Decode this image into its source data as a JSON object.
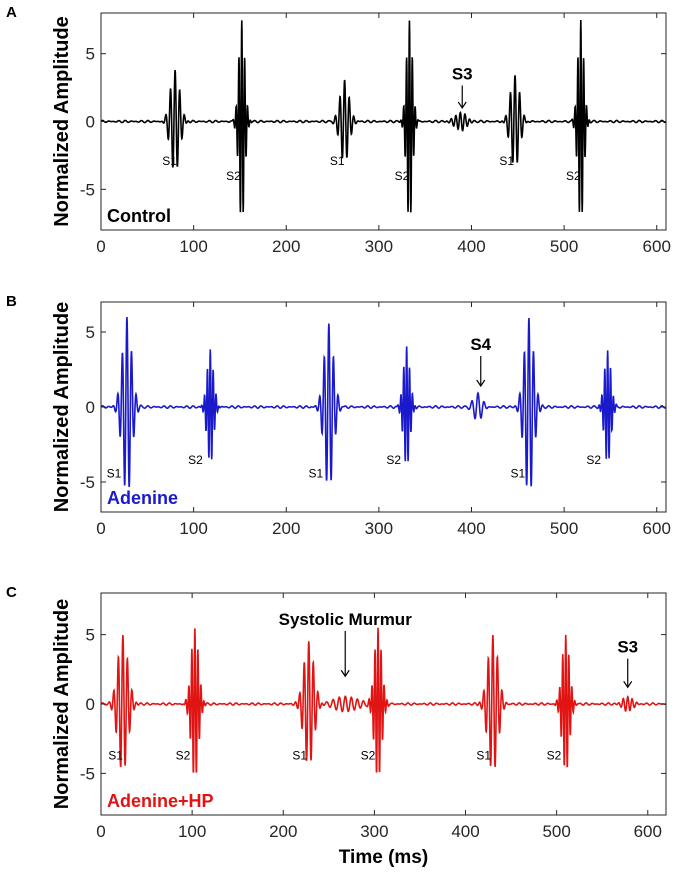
{
  "chart_data": [
    {
      "type": "line",
      "panel_label": "A",
      "ylabel": "Normalized Amplitude",
      "xlabel": "",
      "xlim": [
        0,
        610
      ],
      "ylim": [
        -8,
        8
      ],
      "xticks": [
        0,
        100,
        200,
        300,
        400,
        500,
        600
      ],
      "yticks": [
        -5,
        0,
        5
      ],
      "grid": false,
      "series": [
        {
          "name": "Control",
          "color": "#000000",
          "bursts": [
            {
              "center": 80,
              "amp": 3.8,
              "freq": 0.2,
              "width": 5
            },
            {
              "center": 152,
              "amp": 7.5,
              "freq": 0.32,
              "width": 3.2
            },
            {
              "center": 263,
              "amp": 3.0,
              "freq": 0.2,
              "width": 5
            },
            {
              "center": 333,
              "amp": 7.5,
              "freq": 0.32,
              "width": 3.2
            },
            {
              "center": 388,
              "amp": 0.7,
              "freq": 0.2,
              "width": 6
            },
            {
              "center": 447,
              "amp": 3.4,
              "freq": 0.2,
              "width": 5
            },
            {
              "center": 518,
              "amp": 7.5,
              "freq": 0.32,
              "width": 3.2
            }
          ]
        }
      ],
      "annotations": [
        {
          "text": "S1",
          "x": 74,
          "y": -3.2
        },
        {
          "text": "S2",
          "x": 143,
          "y": -4.3
        },
        {
          "text": "S1",
          "x": 255,
          "y": -3.2
        },
        {
          "text": "S2",
          "x": 325,
          "y": -4.3
        },
        {
          "text": "S1",
          "x": 438,
          "y": -3.2
        },
        {
          "text": "S2",
          "x": 510,
          "y": -4.3
        }
      ],
      "callouts": [
        {
          "text": "S3",
          "x": 390,
          "y": 3.1,
          "arrow_to": 1.0
        }
      ],
      "legend_text": "Control"
    },
    {
      "type": "line",
      "panel_label": "B",
      "ylabel": "Normalized Amplitude",
      "xlabel": "",
      "xlim": [
        0,
        610
      ],
      "ylim": [
        -7,
        7
      ],
      "xticks": [
        0,
        100,
        200,
        300,
        400,
        500,
        600
      ],
      "yticks": [
        -5,
        0,
        5
      ],
      "grid": false,
      "series": [
        {
          "name": "Adenine",
          "color": "#1a1acc",
          "bursts": [
            {
              "center": 28,
              "amp": 6.0,
              "freq": 0.2,
              "width": 5
            },
            {
              "center": 118,
              "amp": 3.8,
              "freq": 0.32,
              "width": 3.5
            },
            {
              "center": 246,
              "amp": 5.5,
              "freq": 0.2,
              "width": 5
            },
            {
              "center": 330,
              "amp": 4.0,
              "freq": 0.32,
              "width": 3.5
            },
            {
              "center": 407,
              "amp": 1.0,
              "freq": 0.15,
              "width": 5
            },
            {
              "center": 462,
              "amp": 6.0,
              "freq": 0.2,
              "width": 5
            },
            {
              "center": 547,
              "amp": 3.8,
              "freq": 0.32,
              "width": 3.5
            }
          ]
        }
      ],
      "annotations": [
        {
          "text": "S1",
          "x": 14,
          "y": -4.7
        },
        {
          "text": "S2",
          "x": 102,
          "y": -3.8
        },
        {
          "text": "S1",
          "x": 232,
          "y": -4.7
        },
        {
          "text": "S2",
          "x": 316,
          "y": -3.8
        },
        {
          "text": "S1",
          "x": 450,
          "y": -4.7
        },
        {
          "text": "S2",
          "x": 532,
          "y": -3.8
        }
      ],
      "callouts": [
        {
          "text": "S4",
          "x": 410,
          "y": 3.8,
          "arrow_to": 1.4
        }
      ],
      "legend_text": "Adenine"
    },
    {
      "type": "line",
      "panel_label": "C",
      "ylabel": "Normalized Amplitude",
      "xlabel": "Time (ms)",
      "xlim": [
        0,
        620
      ],
      "ylim": [
        -8,
        8
      ],
      "xticks": [
        0,
        100,
        200,
        300,
        400,
        500,
        600
      ],
      "yticks": [
        -5,
        0,
        5
      ],
      "grid": false,
      "series": [
        {
          "name": "Adenine+HP",
          "color": "#e11414",
          "bursts": [
            {
              "center": 24,
              "amp": 5.0,
              "freq": 0.2,
              "width": 5.5
            },
            {
              "center": 103,
              "amp": 5.5,
              "freq": 0.3,
              "width": 4
            },
            {
              "center": 228,
              "amp": 4.5,
              "freq": 0.2,
              "width": 5.5
            },
            {
              "center": 268,
              "amp": 0.6,
              "freq": 0.15,
              "width": 12
            },
            {
              "center": 304,
              "amp": 5.5,
              "freq": 0.3,
              "width": 4
            },
            {
              "center": 430,
              "amp": 5.0,
              "freq": 0.2,
              "width": 5.5
            },
            {
              "center": 510,
              "amp": 5.0,
              "freq": 0.3,
              "width": 4
            },
            {
              "center": 578,
              "amp": 0.6,
              "freq": 0.2,
              "width": 5
            }
          ]
        }
      ],
      "annotations": [
        {
          "text": "S1",
          "x": 16,
          "y": -4.0
        },
        {
          "text": "S2",
          "x": 90,
          "y": -4.0
        },
        {
          "text": "S1",
          "x": 218,
          "y": -4.0
        },
        {
          "text": "S2",
          "x": 293,
          "y": -4.0
        },
        {
          "text": "S1",
          "x": 420,
          "y": -4.0
        },
        {
          "text": "S2",
          "x": 497,
          "y": -4.0
        }
      ],
      "callouts": [
        {
          "text": "Systolic Murmur",
          "x": 268,
          "y": 5.7,
          "arrow_to": 2.0
        },
        {
          "text": "S3",
          "x": 578,
          "y": 3.7,
          "arrow_to": 1.2
        }
      ],
      "legend_text": "Adenine+HP"
    }
  ]
}
